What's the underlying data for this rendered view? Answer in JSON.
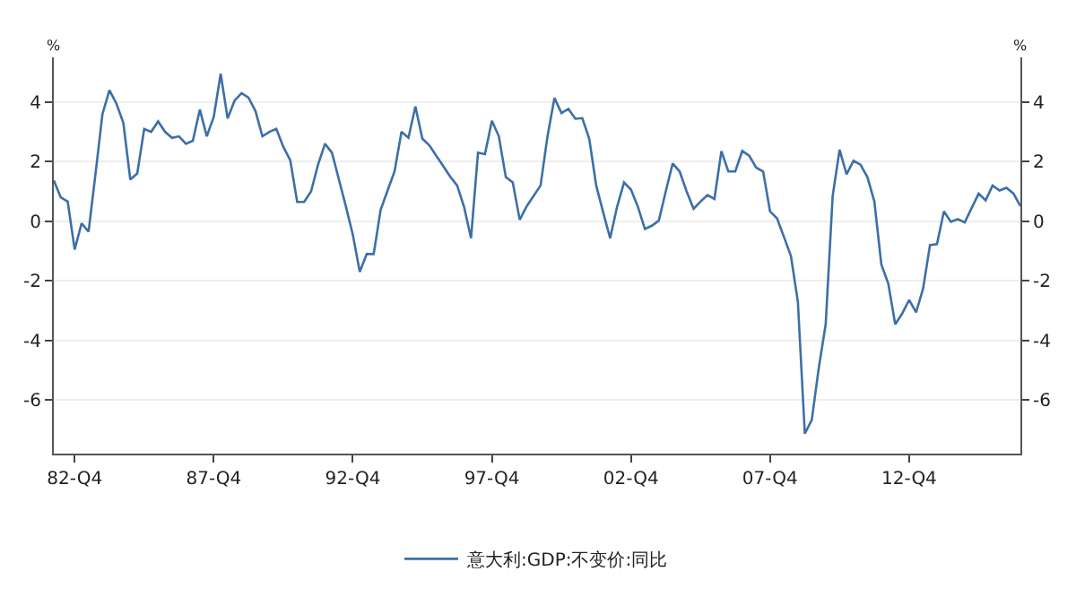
{
  "chart_data": {
    "type": "line",
    "ylabel": "%",
    "y2label": "%",
    "categories": [
      null,
      null,
      null,
      "82-Q4",
      null,
      null,
      null,
      null,
      null,
      null,
      null,
      null,
      null,
      null,
      null,
      null,
      null,
      null,
      null,
      null,
      null,
      null,
      null,
      "87-Q4",
      null,
      null,
      null,
      null,
      null,
      null,
      null,
      null,
      null,
      null,
      null,
      null,
      null,
      null,
      null,
      null,
      null,
      null,
      null,
      "92-Q4",
      null,
      null,
      null,
      null,
      null,
      null,
      null,
      null,
      null,
      null,
      null,
      null,
      null,
      null,
      null,
      null,
      null,
      null,
      null,
      "97-Q4",
      null,
      null,
      null,
      null,
      null,
      null,
      null,
      null,
      null,
      null,
      null,
      null,
      null,
      null,
      null,
      null,
      null,
      null,
      null,
      "02-Q4",
      null,
      null,
      null,
      null,
      null,
      null,
      null,
      null,
      null,
      null,
      null,
      null,
      null,
      null,
      null,
      null,
      null,
      null,
      null,
      "07-Q4",
      null,
      null,
      null,
      null,
      null,
      null,
      null,
      null,
      null,
      null,
      null,
      null,
      null,
      null,
      null,
      null,
      null,
      null,
      null,
      "12-Q4",
      null,
      null,
      null,
      null,
      null,
      null,
      null,
      null,
      null,
      null,
      null,
      null,
      null,
      null,
      null,
      null
    ],
    "series": [
      {
        "name": "意大利:GDP:不变价:同比",
        "color": "#3d6fa8",
        "values": [
          1.37,
          0.8,
          0.66,
          -0.95,
          -0.07,
          -0.35,
          1.6,
          3.6,
          4.4,
          3.95,
          3.3,
          1.4,
          1.6,
          3.1,
          3.0,
          3.35,
          3.0,
          2.8,
          2.85,
          2.6,
          2.7,
          3.75,
          2.85,
          3.5,
          4.95,
          3.45,
          4.05,
          4.3,
          4.15,
          3.7,
          2.85,
          3.0,
          3.1,
          2.5,
          2.05,
          0.65,
          0.65,
          1.0,
          1.9,
          2.6,
          2.3,
          1.4,
          0.5,
          -0.45,
          -1.7,
          -1.1,
          -1.1,
          0.38,
          1.03,
          1.67,
          3.0,
          2.8,
          3.85,
          2.77,
          2.55,
          2.2,
          1.85,
          1.5,
          1.2,
          0.48,
          -0.57,
          2.3,
          2.25,
          3.37,
          2.85,
          1.48,
          1.3,
          0.05,
          0.5,
          0.85,
          1.2,
          2.86,
          4.14,
          3.63,
          3.77,
          3.44,
          3.46,
          2.77,
          1.2,
          0.3,
          -0.57,
          0.48,
          1.3,
          1.06,
          0.48,
          -0.26,
          -0.15,
          0.02,
          1.0,
          1.94,
          1.67,
          1.0,
          0.42,
          0.66,
          0.88,
          0.75,
          2.35,
          1.67,
          1.67,
          2.36,
          2.2,
          1.8,
          1.67,
          0.33,
          0.1,
          -0.53,
          -1.17,
          -2.7,
          -7.13,
          -6.67,
          -4.93,
          -3.46,
          0.84,
          2.4,
          1.58,
          2.03,
          1.9,
          1.48,
          0.66,
          -1.45,
          -2.09,
          -3.46,
          -3.1,
          -2.64,
          -3.06,
          -2.27,
          -0.8,
          -0.77,
          0.33,
          -0.02,
          0.07,
          -0.04,
          0.45,
          0.93,
          0.7,
          1.2,
          1.03,
          1.12,
          0.93,
          0.51
        ]
      }
    ],
    "ylim": [
      -7.8,
      5.5
    ],
    "yticks": [
      -6,
      -4,
      -2,
      0,
      2,
      4
    ],
    "y2lim": [
      -7.8,
      5.5
    ],
    "y2ticks": [
      -6,
      -4,
      -2,
      0,
      2,
      4
    ],
    "grid": "y",
    "legend": "bottom",
    "marker": "none",
    "line_style": "solid"
  }
}
